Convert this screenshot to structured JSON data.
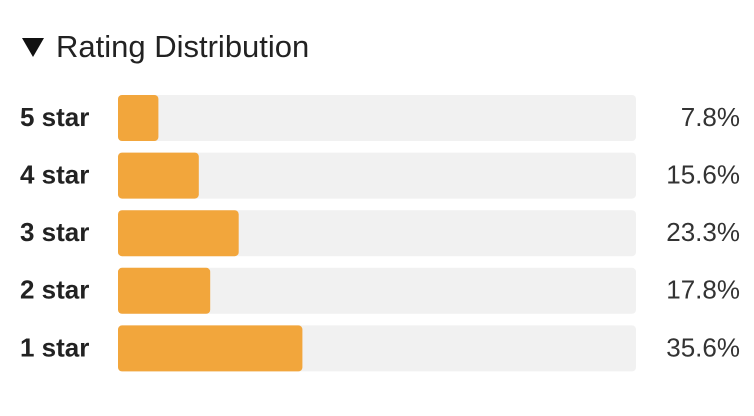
{
  "chart_data": {
    "type": "bar",
    "orientation": "horizontal",
    "title": "Rating Distribution",
    "categories": [
      "5 star",
      "4 star",
      "3 star",
      "2 star",
      "1 star"
    ],
    "values": [
      7.8,
      15.6,
      23.3,
      17.8,
      35.6
    ],
    "value_labels": [
      "7.8%",
      "15.6%",
      "23.3%",
      "17.8%",
      "35.6%"
    ],
    "color": "#f2a63c",
    "xlim": [
      0,
      100
    ]
  }
}
